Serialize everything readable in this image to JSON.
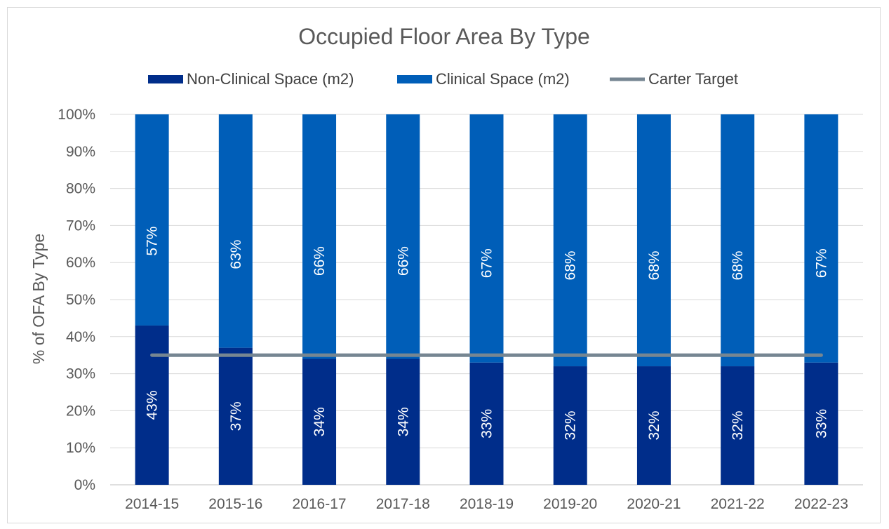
{
  "chart_data": {
    "type": "bar",
    "stacked": true,
    "title": "Occupied Floor Area By Type",
    "xlabel": "",
    "ylabel": "% of OFA By Type",
    "ylim": [
      0,
      100
    ],
    "yticks": [
      "0%",
      "10%",
      "20%",
      "30%",
      "40%",
      "50%",
      "60%",
      "70%",
      "80%",
      "90%",
      "100%"
    ],
    "grid": true,
    "legend_position": "top",
    "categories": [
      "2014-15",
      "2015-16",
      "2016-17",
      "2017-18",
      "2018-19",
      "2019-20",
      "2020-21",
      "2021-22",
      "2022-23"
    ],
    "series": [
      {
        "name": "Non-Clinical Space (m2)",
        "color": "#002D8A",
        "values": [
          43,
          37,
          34,
          34,
          33,
          32,
          32,
          32,
          33
        ],
        "labels": [
          "43%",
          "37%",
          "34%",
          "34%",
          "33%",
          "32%",
          "32%",
          "32%",
          "33%"
        ]
      },
      {
        "name": "Clinical Space (m2)",
        "color": "#005EB8",
        "values": [
          57,
          63,
          66,
          66,
          67,
          68,
          68,
          68,
          67
        ],
        "labels": [
          "57%",
          "63%",
          "66%",
          "66%",
          "67%",
          "68%",
          "68%",
          "68%",
          "67%"
        ]
      },
      {
        "name": "Carter Target",
        "type": "line",
        "color": "#768692",
        "values": [
          35,
          35,
          35,
          35,
          35,
          35,
          35,
          35,
          35
        ]
      }
    ]
  }
}
